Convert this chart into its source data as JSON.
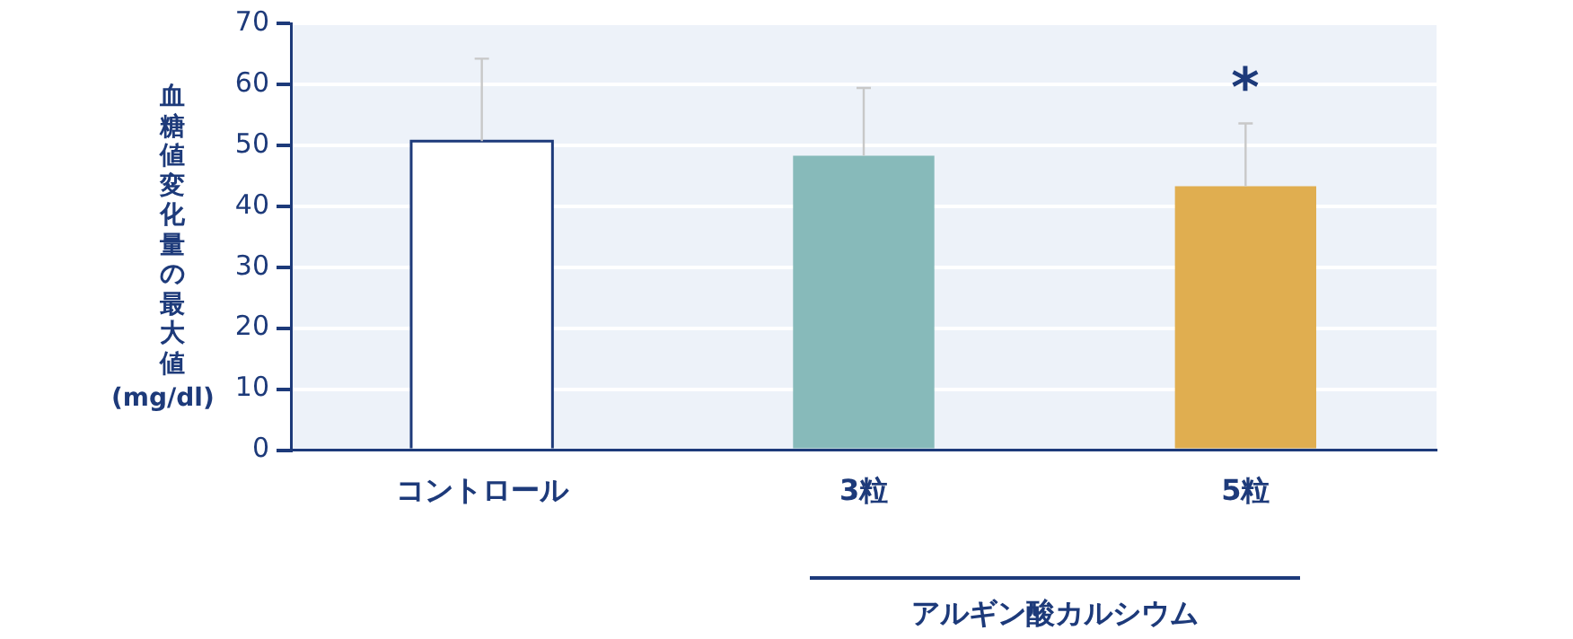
{
  "chart_data": {
    "type": "bar",
    "ylabel": "血糖値変化量の最大値",
    "categories": [
      "コントロール",
      "3粒",
      "5粒"
    ],
    "values": [
      50.7,
      48.3,
      43.3
    ],
    "colors": [
      "#ffffff",
      "#87baba",
      "#e0ae50"
    ],
    "errors": [
      [
        50.7,
        64.2
      ],
      [
        48.3,
        59.4
      ],
      [
        43.3,
        53.6
      ]
    ],
    "ylim": [
      0,
      70
    ],
    "yticks": [
      0,
      10,
      20,
      30,
      40,
      50,
      60,
      70
    ],
    "grid": "y",
    "legend": false,
    "annotations": [
      "*",
      "(mg/dl)",
      "アルギン酸カルシウム"
    ]
  }
}
